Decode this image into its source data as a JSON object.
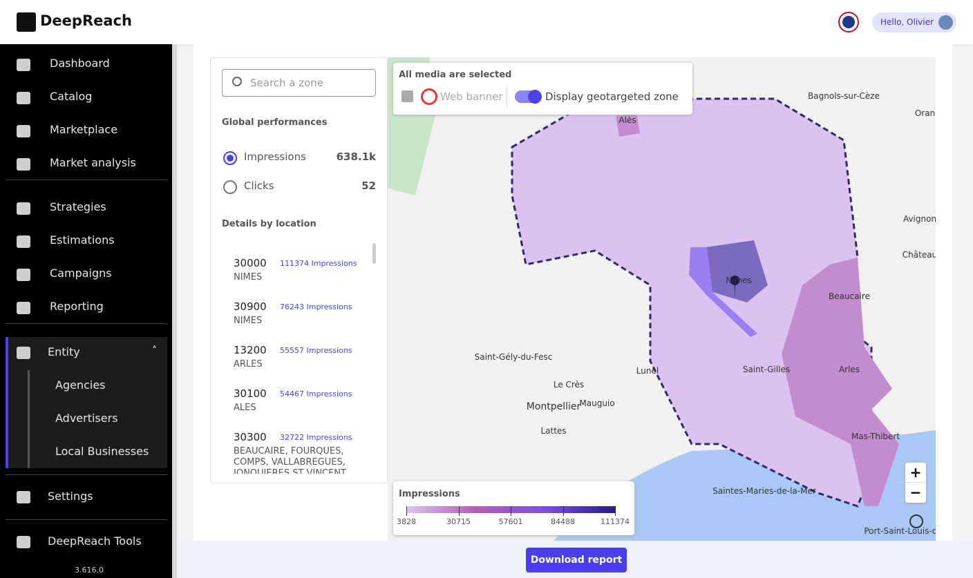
{
  "header": {
    "logo": "DeepReach",
    "greeting": "Hello, Olivier"
  },
  "sidebar": {
    "groups": [
      [
        "Dashboard",
        "Catalog",
        "Marketplace",
        "Market analysis"
      ],
      [
        "Strategies",
        "Estimations",
        "Campaigns",
        "Reporting"
      ]
    ],
    "entity": {
      "label": "Entity",
      "children": [
        "Agencies",
        "Advertisers",
        "Local Businesses"
      ]
    },
    "settings": "Settings",
    "tools": "DeepReach Tools",
    "version": "3.616.0"
  },
  "panel": {
    "search_placeholder": "Search a zone",
    "global_title": "Global performances",
    "metrics": [
      {
        "label": "Impressions",
        "value": "638.1k"
      },
      {
        "label": "Clicks",
        "value": "52"
      }
    ],
    "details_title": "Details by location",
    "locations": [
      {
        "zip": "30000",
        "impressions": "111374 Impressions",
        "city": "NIMES"
      },
      {
        "zip": "30900",
        "impressions": "76243 Impressions",
        "city": "NIMES"
      },
      {
        "zip": "13200",
        "impressions": "55557 Impressions",
        "city": "ARLES"
      },
      {
        "zip": "30100",
        "impressions": "54467 Impressions",
        "city": "ALES"
      },
      {
        "zip": "30300",
        "impressions": "32722 Impressions",
        "city": "BEAUCAIRE, FOURQUES, COMPS, VALLABREGUES, JONQUIERES ST VINCENT"
      }
    ]
  },
  "map": {
    "media_title": "All media are selected",
    "media": "Web banner",
    "toggle": "Display geotargeted zone",
    "labels": [
      "Alès",
      "Bagnols-sur-Cèze",
      "Orange",
      "Avignon",
      "Château",
      "Nîmes",
      "Beaucaire",
      "Saint-Gély-du-Fesc",
      "Le Crès",
      "Lunel",
      "Saint-Gilles",
      "Arles",
      "Montpellier",
      "Mauguio",
      "Lattes",
      "Mas-Thibert",
      "Saintes-Maries-de-la-Mer",
      "Port-Saint-Louis-du-Rhô"
    ],
    "legend": {
      "title": "Impressions",
      "ticks": [
        3828,
        30715,
        57601,
        84488,
        111374
      ]
    }
  },
  "footer": {
    "button": "Download report"
  }
}
